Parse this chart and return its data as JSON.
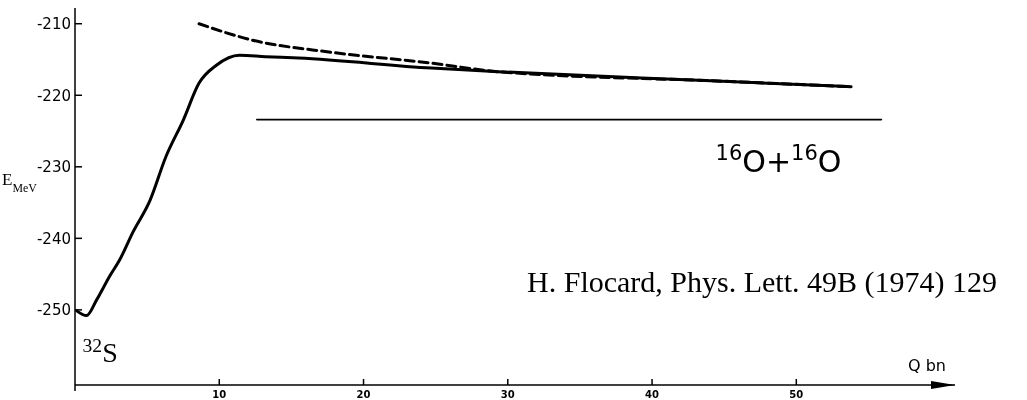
{
  "chart_data": {
    "type": "line",
    "xlabel": "Q bn",
    "ylabel": "E$_{MeV}$",
    "xlim": [
      0,
      61
    ],
    "ylim": [
      -260.5,
      -207.8
    ],
    "xticks": [
      10,
      20,
      30,
      40,
      50
    ],
    "yticks": [
      -210,
      -220,
      -230,
      -240,
      -250
    ],
    "grid": false,
    "marker": "none",
    "series": [
      {
        "color": "#000000",
        "line_style": "solid",
        "x": [
          0.1,
          0.8,
          1.5,
          2.4,
          3.1,
          4,
          5.2,
          6.3,
          7.5,
          8.6,
          9.8,
          11.4,
          13.2,
          15.5,
          24.7,
          29.3,
          44.5,
          53.8
        ],
        "values": [
          -250.1,
          -250.8,
          -248.6,
          -245.3,
          -243,
          -239.2,
          -234.7,
          -228.6,
          -223.5,
          -218.3,
          -215.8,
          -214.4,
          -214.6,
          -214.8,
          -216.2,
          -216.7,
          -218,
          -218.8
        ]
      },
      {
        "color": "#000000",
        "line_style": "dashed",
        "x": [
          8.6,
          12.1,
          17.8,
          24.7,
          29.3,
          44.5,
          53.8
        ],
        "values": [
          -210,
          -212.2,
          -214,
          -215.5,
          -216.7,
          -218,
          -218.8
        ]
      },
      {
        "name": "$^{16}$O+$^{16}$O",
        "color": "#000000",
        "line_style": "solid",
        "x": [
          12.6,
          55.9
        ],
        "values": [
          -223.4,
          -223.4
        ]
      }
    ],
    "annotations": [
      {
        "text": "$^{32}$S",
        "x": 0.8,
        "y": -250.8
      },
      "H. Flocard, Phys. Lett. 49B (1974) 129"
    ]
  }
}
